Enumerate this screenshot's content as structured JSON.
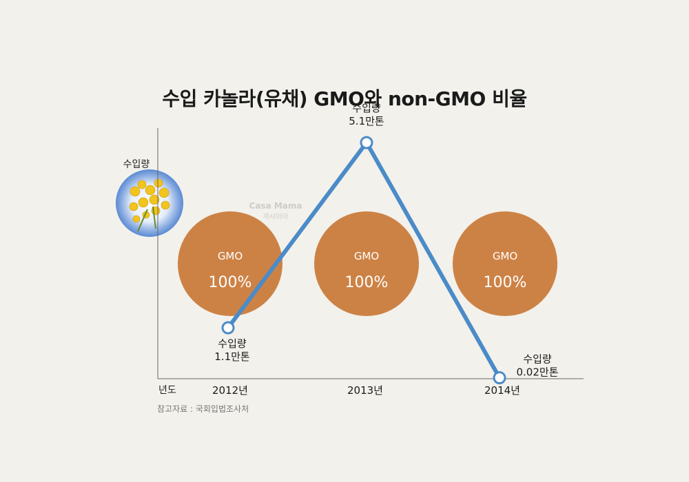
{
  "title": "수입 카놀라(유채) GMO와 non-GMO 비율",
  "y_axis_label": "수입량",
  "x_axis_label": "년도",
  "source": "참고자료 : 국회입법조사처",
  "watermark": {
    "brand": "Casa Mama",
    "brand_ko": "까사마마"
  },
  "colors": {
    "background": "#f2f1ec",
    "circle": "#cd8245",
    "line": "#4a8bc8",
    "axis": "#666666",
    "icon_glow": "#4a7fd0",
    "flower": "#f2c41c"
  },
  "icons": {
    "y_axis_badge": "canola-flower-icon"
  },
  "chart_data": {
    "type": "line",
    "title": "수입 카놀라(유채) GMO와 non-GMO 비율",
    "xlabel": "년도",
    "ylabel": "수입량",
    "unit": "만톤",
    "categories": [
      "2012년",
      "2013년",
      "2014년"
    ],
    "x": [
      2012,
      2013,
      2014
    ],
    "values": [
      1.1,
      5.1,
      0.02
    ],
    "value_labels": [
      "수입량\n1.1만톤",
      "수입량\n5.1만톤",
      "수입량\n0.02만톤"
    ],
    "ylim": [
      0,
      5.8
    ],
    "grid": false,
    "gmo_share": [
      {
        "label": "GMO",
        "value_text": "100%",
        "value": 100
      },
      {
        "label": "GMO",
        "value_text": "100%",
        "value": 100
      },
      {
        "label": "GMO",
        "value_text": "100%",
        "value": 100
      }
    ]
  }
}
